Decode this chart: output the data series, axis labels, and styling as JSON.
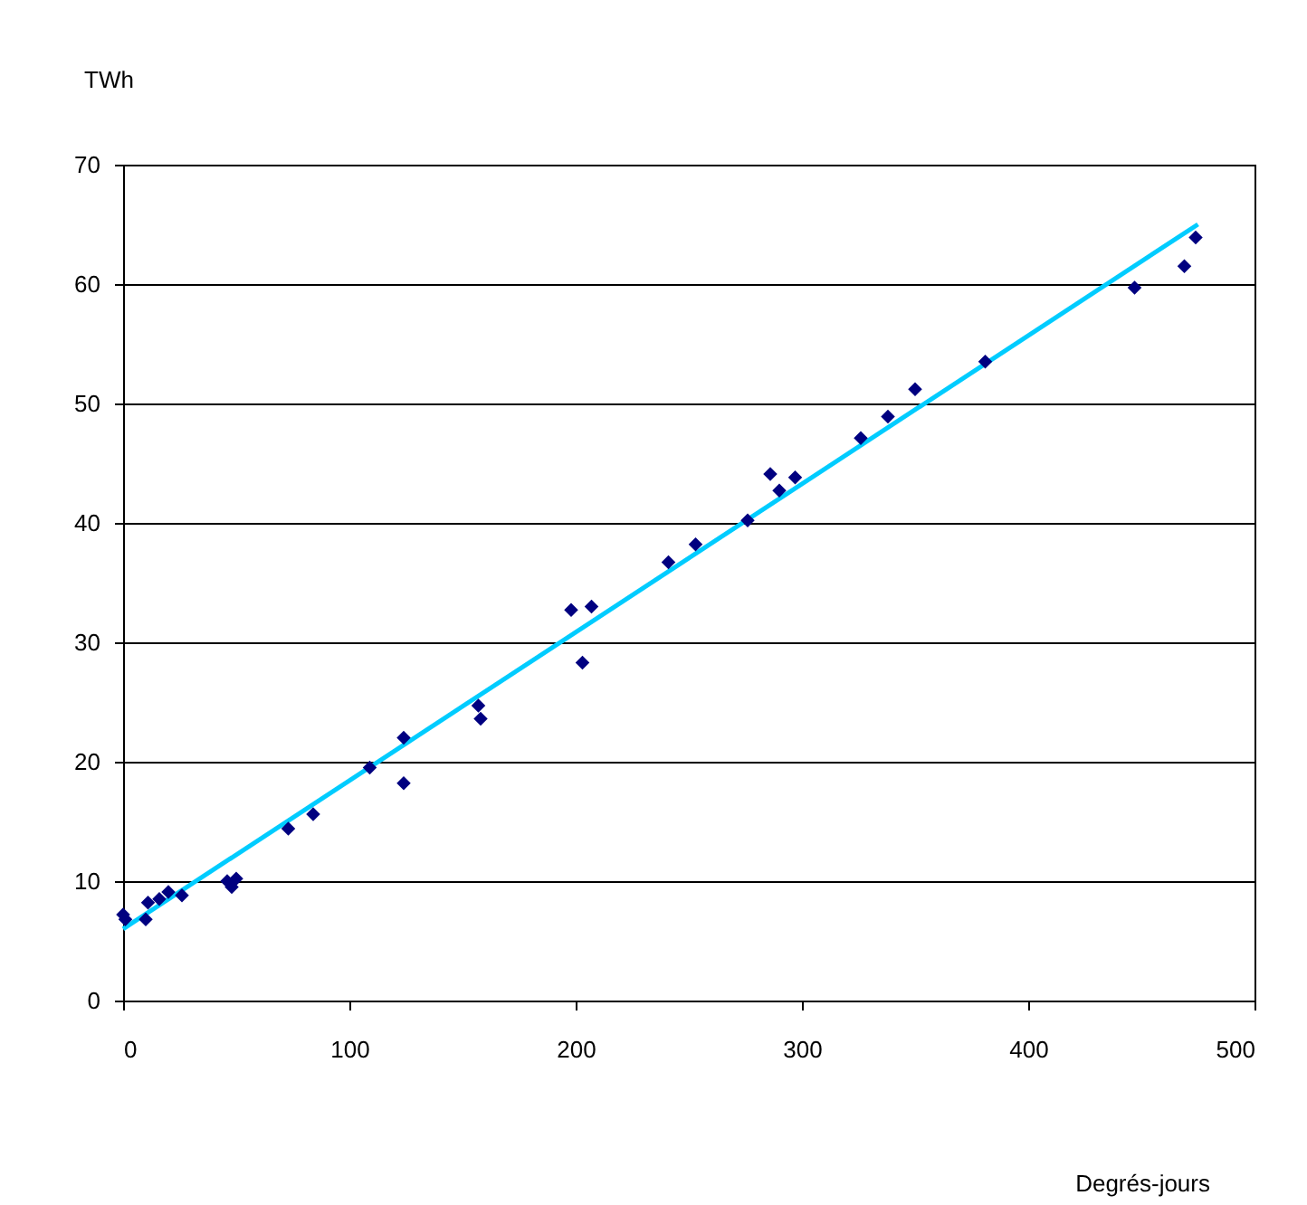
{
  "chart_data": {
    "type": "scatter",
    "xlabel": "Degrés-jours",
    "ylabel": "TWh",
    "xlim": [
      0,
      500
    ],
    "xticks": [
      0,
      100,
      200,
      300,
      400,
      500
    ],
    "ylim": [
      0,
      70
    ],
    "yticks": [
      0,
      10,
      20,
      30,
      40,
      50,
      60,
      70
    ],
    "grid": "y",
    "series": [
      {
        "color": "#000080",
        "marker": "diamond",
        "x": [
          0,
          1,
          10,
          11,
          16,
          20,
          26,
          46,
          48,
          50,
          73,
          84,
          109,
          124,
          124,
          157,
          158,
          198,
          203,
          207,
          241,
          253,
          276,
          286,
          290,
          297,
          326,
          338,
          350,
          381,
          447,
          469,
          474
        ],
        "values": [
          7.2,
          6.8,
          6.8,
          8.2,
          8.5,
          9.1,
          8.8,
          10.0,
          9.5,
          10.2,
          14.4,
          15.6,
          19.5,
          22.0,
          18.2,
          24.7,
          23.6,
          32.7,
          28.3,
          33.0,
          36.7,
          38.2,
          40.2,
          44.1,
          42.7,
          43.8,
          47.1,
          48.9,
          51.2,
          53.5,
          59.7,
          61.5,
          63.9
        ]
      },
      {
        "type": "line",
        "color": "#00ccff",
        "x": [
          0,
          475
        ],
        "values": [
          6.0,
          65.0
        ]
      }
    ]
  }
}
